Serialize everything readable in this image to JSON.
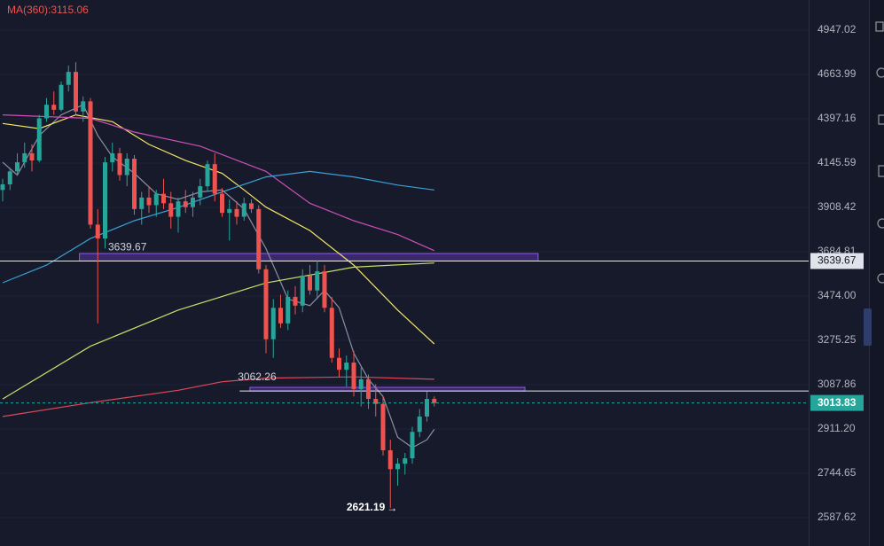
{
  "chart_data": {
    "type": "candlestick",
    "title": "MA(360):3115.06",
    "log_scale": true,
    "grid": true,
    "ylim": [
      2491.9,
      5149.2
    ],
    "yticks": [
      4947.02,
      4663.99,
      4397.16,
      4145.59,
      3908.42,
      3684.81,
      {
        "value": 3474,
        "label": "3474.00"
      },
      3275.25,
      3087.86,
      {
        "value": 2911.2,
        "label": "2911.20"
      },
      2744.65,
      2587.62
    ],
    "candles": {
      "up_color": "#26a69a",
      "down_color": "#ef5350",
      "open": [
        4000,
        4030,
        4100,
        4150,
        4200,
        4160,
        4400,
        4480,
        4450,
        4600,
        4680,
        4440,
        4500,
        3820,
        3750,
        4150,
        4200,
        4080,
        4170,
        3900,
        3960,
        3920,
        3980,
        3930,
        3860,
        3940,
        3910,
        3960,
        4020,
        4140,
        3980,
        3880,
        3900,
        3860,
        3930,
        3900,
        3600,
        3280,
        3420,
        3350,
        3470,
        3430,
        3570,
        3500,
        3590,
        3420,
        3200,
        3150,
        3180,
        3070,
        3110,
        3030,
        3010,
        2830,
        2760,
        2780,
        2800,
        2900,
        2960,
        3030
      ],
      "high": [
        4060,
        4120,
        4200,
        4260,
        4250,
        4420,
        4520,
        4560,
        4620,
        4720,
        4740,
        4530,
        4520,
        3900,
        4180,
        4260,
        4230,
        4200,
        4190,
        3990,
        4020,
        4000,
        4060,
        3990,
        3960,
        4000,
        3990,
        4060,
        4160,
        4200,
        4010,
        3950,
        3940,
        3960,
        3950,
        3920,
        3620,
        3460,
        3480,
        3500,
        3520,
        3600,
        3620,
        3640,
        3620,
        3470,
        3240,
        3210,
        3230,
        3160,
        3130,
        3090,
        3040,
        2870,
        2800,
        2820,
        2920,
        2990,
        3060,
        3040
      ],
      "low": [
        3940,
        4000,
        4080,
        4120,
        4100,
        4150,
        4380,
        4420,
        4440,
        4560,
        4420,
        4380,
        3800,
        3350,
        3700,
        4100,
        4050,
        4020,
        3870,
        3820,
        3880,
        3860,
        3900,
        3800,
        3780,
        3880,
        3860,
        3920,
        3990,
        3940,
        3860,
        3740,
        3820,
        3840,
        3880,
        3580,
        3220,
        3200,
        3330,
        3320,
        3390,
        3400,
        3480,
        3460,
        3400,
        3180,
        3120,
        3080,
        3040,
        3000,
        2990,
        2960,
        2810,
        2621.19,
        2700,
        2740,
        2780,
        2880,
        2940,
        3000
      ],
      "close": [
        4030,
        4100,
        4150,
        4200,
        4160,
        4400,
        4480,
        4450,
        4600,
        4680,
        4440,
        4500,
        3820,
        3750,
        4150,
        4200,
        4080,
        4170,
        3900,
        3960,
        3920,
        3980,
        3930,
        3860,
        3940,
        3910,
        3960,
        4020,
        4140,
        3980,
        3880,
        3900,
        3860,
        3930,
        3900,
        3600,
        3280,
        3420,
        3350,
        3470,
        3430,
        3570,
        3500,
        3590,
        3420,
        3200,
        3150,
        3180,
        3070,
        3110,
        3030,
        3010,
        2830,
        2760,
        2780,
        2800,
        2900,
        2960,
        3030,
        3013.83
      ]
    },
    "moving_averages": [
      {
        "color": "#8a8fa3",
        "x": [
          0,
          2,
          5,
          8,
          11,
          13,
          15,
          18,
          21,
          24,
          27,
          30,
          33,
          36,
          39,
          42,
          44,
          46,
          48,
          50,
          52,
          54,
          56,
          58,
          59
        ],
        "values": [
          4150,
          4080,
          4300,
          4420,
          4480,
          4300,
          4180,
          4090,
          3980,
          3950,
          3990,
          4000,
          3900,
          3700,
          3460,
          3430,
          3500,
          3420,
          3220,
          3110,
          3040,
          2880,
          2840,
          2870,
          2910
        ]
      },
      {
        "color": "#f5e663",
        "x": [
          0,
          5,
          10,
          15,
          20,
          25,
          30,
          33,
          36,
          42,
          48,
          54,
          59
        ],
        "values": [
          4370,
          4340,
          4420,
          4380,
          4250,
          4160,
          4090,
          4000,
          3910,
          3790,
          3620,
          3410,
          3260
        ]
      },
      {
        "color": "#d04fb8",
        "x": [
          0,
          12,
          18,
          27,
          36,
          42,
          48,
          54,
          59
        ],
        "values": [
          4420,
          4400,
          4320,
          4240,
          4100,
          3930,
          3840,
          3770,
          3690
        ]
      },
      {
        "color": "#3aa0d8",
        "x": [
          0,
          6,
          12,
          18,
          24,
          30,
          36,
          42,
          48,
          54,
          59
        ],
        "values": [
          3536,
          3620,
          3750,
          3840,
          3908,
          3990,
          4070,
          4100,
          4070,
          4026,
          4000
        ]
      },
      {
        "color": "#c8e26a",
        "x": [
          0,
          12,
          24,
          36,
          48,
          59
        ],
        "values": [
          3030,
          3250,
          3410,
          3535,
          3610,
          3630
        ]
      },
      {
        "color": "#e0485a",
        "x": [
          0,
          12,
          24,
          30,
          36,
          48,
          59
        ],
        "values": [
          2960,
          3015,
          3065,
          3100,
          3115,
          3120,
          3110
        ]
      }
    ],
    "levels": [
      {
        "value": 3639.67,
        "from": 0
      },
      {
        "value": 3062.26,
        "from": 33
      }
    ],
    "zones": [
      {
        "x": [
          10.5,
          73.2
        ],
        "range": [
          3640,
          3676
        ]
      },
      {
        "x": [
          33.8,
          71.4
        ],
        "range": [
          3062,
          3077
        ]
      }
    ],
    "last_price": 3013.83
  }
}
